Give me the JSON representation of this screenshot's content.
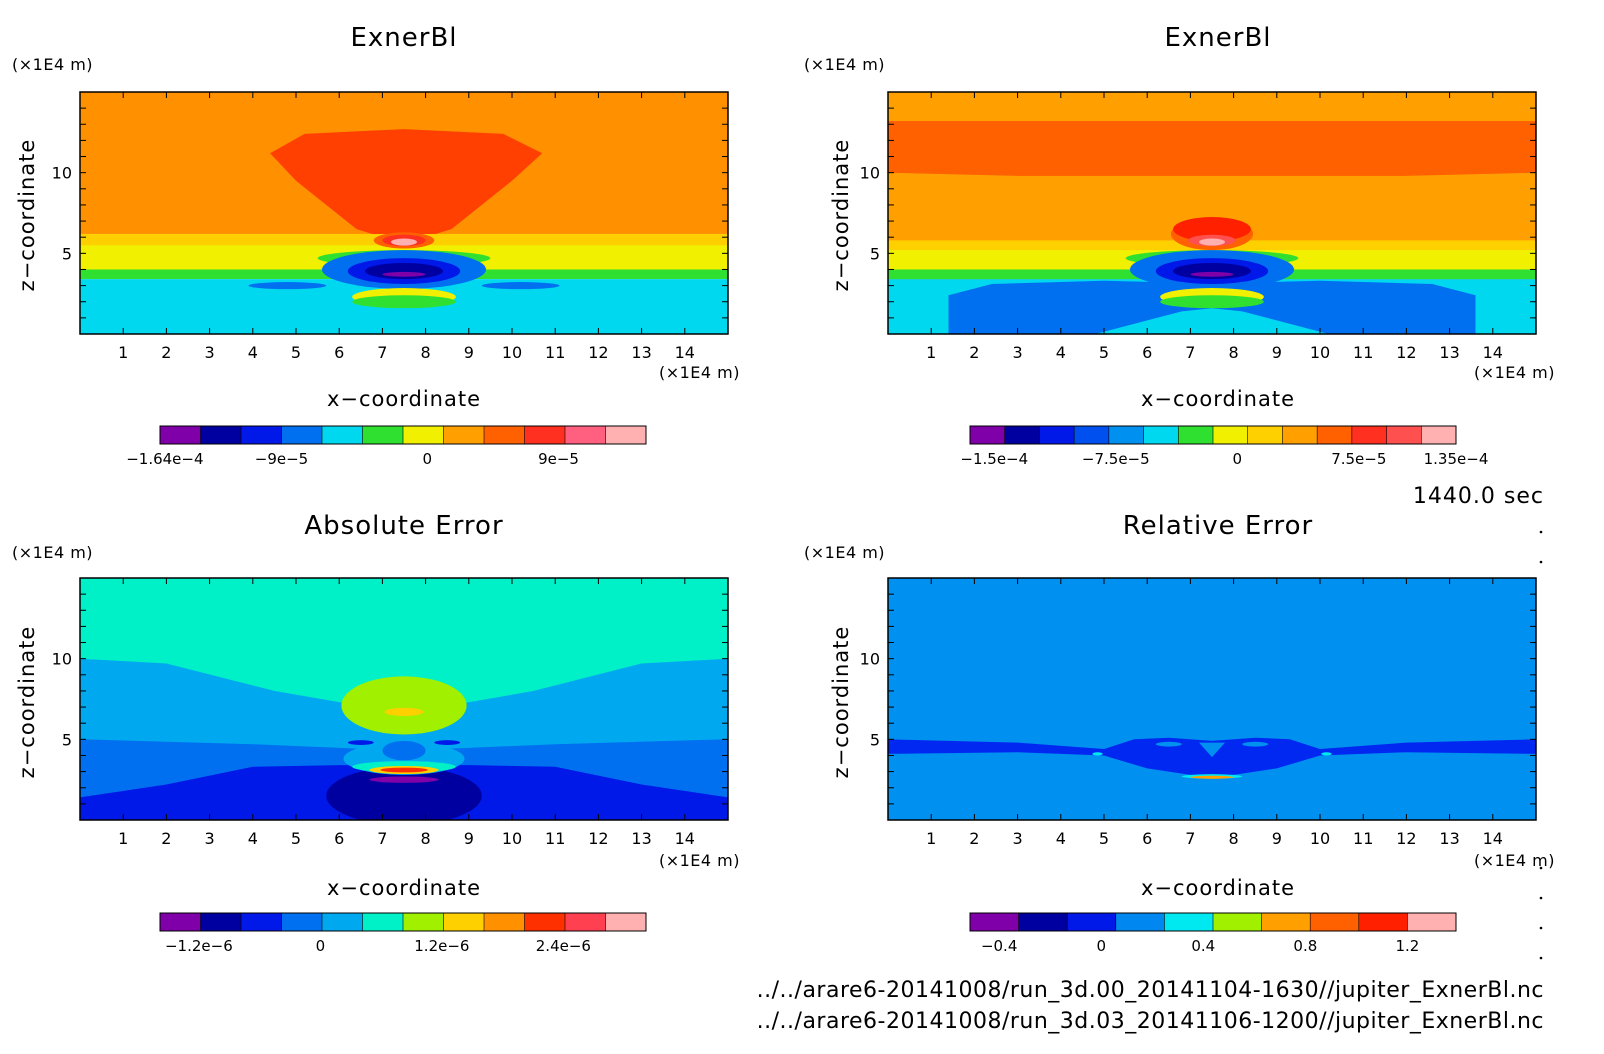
{
  "figure": {
    "time_label": "1440.0 sec",
    "file_paths": [
      "../../arare6-20141008/run_3d.00_20141104-1630//jupiter_ExnerBl.nc",
      "../../arare6-20141008/run_3d.03_20141106-1200//jupiter_ExnerBl.nc"
    ]
  },
  "chart_data": [
    {
      "type": "heatmap",
      "title": "ExnerBl",
      "xlabel": "x−coordinate",
      "ylabel": "z−coordinate",
      "x_unit": "(×1E4 m)",
      "y_unit": "(×1E4 m)",
      "xlim": [
        0,
        15
      ],
      "ylim": [
        0,
        15
      ],
      "x_ticks": [
        "1",
        "2",
        "3",
        "4",
        "5",
        "6",
        "7",
        "8",
        "9",
        "10",
        "11",
        "12",
        "13",
        "14"
      ],
      "y_ticks": [
        "5",
        "10"
      ],
      "colorbar": {
        "colors": [
          "#7f00a8",
          "#0000a0",
          "#0018e8",
          "#0070f0",
          "#00d8f0",
          "#30e030",
          "#f0f000",
          "#ffa000",
          "#ff6000",
          "#ff3020",
          "#ff6080",
          "#ffb0b0"
        ],
        "tick_labels": [
          "−1.64e−4",
          "−9e−5",
          "0",
          "9e−5"
        ],
        "tick_fractions": [
          0.01,
          0.25,
          0.55,
          0.82
        ]
      },
      "field": [
        {
          "kind": "rect",
          "color": "#ff9000",
          "x0": 0,
          "x1": 15,
          "y0": 6.2,
          "y1": 15
        },
        {
          "kind": "poly",
          "color": "#ff4000",
          "points": [
            [
              4.4,
              11.2
            ],
            [
              5.2,
              12.4
            ],
            [
              7.5,
              12.7
            ],
            [
              9.8,
              12.4
            ],
            [
              10.7,
              11.2
            ],
            [
              10,
              9.5
            ],
            [
              8.6,
              6.5
            ],
            [
              7.5,
              5.6
            ],
            [
              6.4,
              6.5
            ],
            [
              5,
              9.5
            ]
          ]
        },
        {
          "kind": "rect",
          "color": "#ffd000",
          "x0": 0,
          "x1": 15,
          "y0": 4.8,
          "y1": 6.2
        },
        {
          "kind": "rect",
          "color": "#f0f000",
          "x0": 0,
          "x1": 15,
          "y0": 3.9,
          "y1": 5.5
        },
        {
          "kind": "rect",
          "color": "#30e030",
          "x0": 0,
          "x1": 15,
          "y0": 3.4,
          "y1": 4.0
        },
        {
          "kind": "rect",
          "color": "#00d8f0",
          "x0": 0,
          "x1": 15,
          "y0": 0,
          "y1": 3.4
        },
        {
          "kind": "ellipse",
          "color": "#30e030",
          "cx": 7.5,
          "cy": 4.7,
          "rx": 2.0,
          "ry": 0.5
        },
        {
          "kind": "ellipse",
          "color": "#0070f0",
          "cx": 7.5,
          "cy": 4.0,
          "rx": 1.9,
          "ry": 1.2
        },
        {
          "kind": "ellipse",
          "color": "#0018e8",
          "cx": 7.5,
          "cy": 3.9,
          "rx": 1.3,
          "ry": 0.8
        },
        {
          "kind": "ellipse",
          "color": "#0000a0",
          "cx": 7.5,
          "cy": 3.9,
          "rx": 0.9,
          "ry": 0.5
        },
        {
          "kind": "ellipse",
          "color": "#7f00a8",
          "cx": 7.5,
          "cy": 3.7,
          "rx": 0.5,
          "ry": 0.15
        },
        {
          "kind": "ellipse",
          "color": "#0070f0",
          "cx": 4.8,
          "cy": 3.0,
          "rx": 0.9,
          "ry": 0.22
        },
        {
          "kind": "ellipse",
          "color": "#0070f0",
          "cx": 10.2,
          "cy": 3.0,
          "rx": 0.9,
          "ry": 0.22
        },
        {
          "kind": "ellipse",
          "color": "#f0f000",
          "cx": 7.5,
          "cy": 2.3,
          "rx": 1.2,
          "ry": 0.55
        },
        {
          "kind": "ellipse",
          "color": "#30e030",
          "cx": 7.5,
          "cy": 2.0,
          "rx": 1.2,
          "ry": 0.4
        },
        {
          "kind": "ellipse",
          "color": "#ff6000",
          "cx": 7.5,
          "cy": 5.8,
          "rx": 0.7,
          "ry": 0.5
        },
        {
          "kind": "ellipse",
          "color": "#ff3020",
          "cx": 7.5,
          "cy": 5.8,
          "rx": 0.5,
          "ry": 0.35
        },
        {
          "kind": "ellipse",
          "color": "#ffb0b0",
          "cx": 7.5,
          "cy": 5.7,
          "rx": 0.3,
          "ry": 0.22
        }
      ]
    },
    {
      "type": "heatmap",
      "title": "ExnerBl",
      "xlabel": "x−coordinate",
      "ylabel": "z−coordinate",
      "x_unit": "(×1E4 m)",
      "y_unit": "(×1E4 m)",
      "xlim": [
        0,
        15
      ],
      "ylim": [
        0,
        15
      ],
      "x_ticks": [
        "1",
        "2",
        "3",
        "4",
        "5",
        "6",
        "7",
        "8",
        "9",
        "10",
        "11",
        "12",
        "13",
        "14"
      ],
      "y_ticks": [
        "5",
        "10"
      ],
      "colorbar": {
        "colors": [
          "#7f00a8",
          "#0000a0",
          "#0018e8",
          "#0050f0",
          "#0090f0",
          "#00d8f0",
          "#30e030",
          "#f0f000",
          "#ffd000",
          "#ffa000",
          "#ff6000",
          "#ff3020",
          "#ff5050",
          "#ffb0b0"
        ],
        "tick_labels": [
          "−1.5e−4",
          "−7.5e−5",
          "0",
          "7.5e−5",
          "1.35e−4"
        ],
        "tick_fractions": [
          0.05,
          0.3,
          0.55,
          0.8,
          1.0
        ]
      },
      "field": [
        {
          "kind": "rect",
          "color": "#ffa000",
          "x0": 0,
          "x1": 15,
          "y0": 0,
          "y1": 15
        },
        {
          "kind": "rect",
          "color": "#ff6000",
          "x0": 0,
          "x1": 15,
          "y0": 9.8,
          "y1": 13.2
        },
        {
          "kind": "poly",
          "color": "#ffa000",
          "points": [
            [
              0,
              10
            ],
            [
              3,
              9.8
            ],
            [
              5.5,
              8.2
            ],
            [
              7.5,
              6.3
            ],
            [
              9.5,
              8.2
            ],
            [
              12,
              9.8
            ],
            [
              15,
              10
            ],
            [
              15,
              5.5
            ],
            [
              0,
              5.5
            ]
          ]
        },
        {
          "kind": "rect",
          "color": "#ffd000",
          "x0": 0,
          "x1": 15,
          "y0": 4.8,
          "y1": 5.8
        },
        {
          "kind": "rect",
          "color": "#f0f000",
          "x0": 0,
          "x1": 15,
          "y0": 3.9,
          "y1": 5.2
        },
        {
          "kind": "rect",
          "color": "#30e030",
          "x0": 0,
          "x1": 15,
          "y0": 3.4,
          "y1": 4.0
        },
        {
          "kind": "rect",
          "color": "#00d8f0",
          "x0": 0,
          "x1": 15,
          "y0": 0,
          "y1": 3.4
        },
        {
          "kind": "poly",
          "color": "#0070f0",
          "points": [
            [
              1.4,
              0
            ],
            [
              1.4,
              2.4
            ],
            [
              2.4,
              3.1
            ],
            [
              5,
              3.3
            ],
            [
              6.5,
              3.2
            ],
            [
              7.5,
              3.0
            ],
            [
              8.5,
              3.2
            ],
            [
              10,
              3.3
            ],
            [
              12.6,
              3.1
            ],
            [
              13.6,
              2.4
            ],
            [
              13.6,
              0
            ]
          ]
        },
        {
          "kind": "poly",
          "color": "#00d8f0",
          "points": [
            [
              4.8,
              0
            ],
            [
              6.8,
              1.4
            ],
            [
              7.5,
              1.6
            ],
            [
              8.2,
              1.4
            ],
            [
              10.2,
              0
            ]
          ]
        },
        {
          "kind": "ellipse",
          "color": "#30e030",
          "cx": 7.5,
          "cy": 4.7,
          "rx": 2.0,
          "ry": 0.5
        },
        {
          "kind": "ellipse",
          "color": "#0070f0",
          "cx": 7.5,
          "cy": 4.0,
          "rx": 1.9,
          "ry": 1.2
        },
        {
          "kind": "ellipse",
          "color": "#0018e8",
          "cx": 7.5,
          "cy": 3.9,
          "rx": 1.3,
          "ry": 0.8
        },
        {
          "kind": "ellipse",
          "color": "#0000a0",
          "cx": 7.5,
          "cy": 3.9,
          "rx": 0.9,
          "ry": 0.5
        },
        {
          "kind": "ellipse",
          "color": "#7f00a8",
          "cx": 7.5,
          "cy": 3.7,
          "rx": 0.5,
          "ry": 0.15
        },
        {
          "kind": "ellipse",
          "color": "#f0f000",
          "cx": 7.5,
          "cy": 2.3,
          "rx": 1.2,
          "ry": 0.55
        },
        {
          "kind": "ellipse",
          "color": "#30e030",
          "cx": 7.5,
          "cy": 2.0,
          "rx": 1.2,
          "ry": 0.4
        },
        {
          "kind": "ellipse",
          "color": "#ff6000",
          "cx": 7.5,
          "cy": 6.2,
          "rx": 0.95,
          "ry": 1.0
        },
        {
          "kind": "ellipse",
          "color": "#ff2000",
          "cx": 7.5,
          "cy": 6.5,
          "rx": 0.9,
          "ry": 0.75
        },
        {
          "kind": "ellipse",
          "color": "#ff5050",
          "cx": 7.5,
          "cy": 5.8,
          "rx": 0.55,
          "ry": 0.35
        },
        {
          "kind": "ellipse",
          "color": "#ffb0b0",
          "cx": 7.5,
          "cy": 5.7,
          "rx": 0.3,
          "ry": 0.22
        }
      ]
    },
    {
      "type": "heatmap",
      "title": "Absolute Error",
      "xlabel": "x−coordinate",
      "ylabel": "z−coordinate",
      "x_unit": "(×1E4 m)",
      "y_unit": "(×1E4 m)",
      "xlim": [
        0,
        15
      ],
      "ylim": [
        0,
        15
      ],
      "x_ticks": [
        "1",
        "2",
        "3",
        "4",
        "5",
        "6",
        "7",
        "8",
        "9",
        "10",
        "11",
        "12",
        "13",
        "14"
      ],
      "y_ticks": [
        "5",
        "10"
      ],
      "colorbar": {
        "colors": [
          "#7f00a8",
          "#0000a0",
          "#0018e8",
          "#0070f0",
          "#00a8f0",
          "#00f0c8",
          "#a0f000",
          "#ffd000",
          "#ff9000",
          "#ff3000",
          "#ff4050",
          "#ffb0b0"
        ],
        "tick_labels": [
          "−1.2e−6",
          "0",
          "1.2e−6",
          "2.4e−6"
        ],
        "tick_fractions": [
          0.08,
          0.33,
          0.58,
          0.83
        ]
      },
      "field": [
        {
          "kind": "rect",
          "color": "#00f0c8",
          "x0": 0,
          "x1": 15,
          "y0": 0,
          "y1": 15
        },
        {
          "kind": "poly",
          "color": "#00a8f0",
          "points": [
            [
              0,
              10
            ],
            [
              2,
              9.7
            ],
            [
              4.5,
              8.0
            ],
            [
              7.5,
              6.6
            ],
            [
              10.5,
              8.0
            ],
            [
              13,
              9.7
            ],
            [
              15,
              10
            ],
            [
              15,
              0
            ],
            [
              0,
              0
            ]
          ]
        },
        {
          "kind": "poly",
          "color": "#0070f0",
          "points": [
            [
              0,
              5
            ],
            [
              4,
              4.7
            ],
            [
              7.5,
              4.3
            ],
            [
              11,
              4.7
            ],
            [
              15,
              5
            ],
            [
              15,
              0
            ],
            [
              0,
              0
            ]
          ]
        },
        {
          "kind": "poly",
          "color": "#0018e8",
          "points": [
            [
              0,
              1.4
            ],
            [
              2,
              2.2
            ],
            [
              4,
              3.3
            ],
            [
              6,
              3.4
            ],
            [
              7.5,
              3.4
            ],
            [
              9,
              3.4
            ],
            [
              11,
              3.3
            ],
            [
              13,
              2.2
            ],
            [
              15,
              1.4
            ],
            [
              15,
              0
            ],
            [
              0,
              0
            ]
          ]
        },
        {
          "kind": "ellipse",
          "color": "#0000a0",
          "cx": 7.5,
          "cy": 1.5,
          "rx": 1.8,
          "ry": 1.8
        },
        {
          "kind": "ellipse",
          "color": "#00a8f0",
          "cx": 7.5,
          "cy": 3.8,
          "rx": 1.4,
          "ry": 1.0
        },
        {
          "kind": "ellipse",
          "color": "#0070f0",
          "cx": 7.5,
          "cy": 4.3,
          "rx": 0.5,
          "ry": 0.6
        },
        {
          "kind": "ellipse",
          "color": "#0018e8",
          "cx": 6.5,
          "cy": 4.8,
          "rx": 0.3,
          "ry": 0.15
        },
        {
          "kind": "ellipse",
          "color": "#0018e8",
          "cx": 8.5,
          "cy": 4.8,
          "rx": 0.3,
          "ry": 0.15
        },
        {
          "kind": "ellipse",
          "color": "#00f0c8",
          "cx": 7.5,
          "cy": 3.3,
          "rx": 1.2,
          "ry": 0.35
        },
        {
          "kind": "ellipse",
          "color": "#ffd000",
          "cx": 7.5,
          "cy": 3.1,
          "rx": 0.8,
          "ry": 0.25
        },
        {
          "kind": "ellipse",
          "color": "#ff3000",
          "cx": 7.5,
          "cy": 3.1,
          "rx": 0.55,
          "ry": 0.15
        },
        {
          "kind": "ellipse",
          "color": "#7f00a8",
          "cx": 7.5,
          "cy": 2.5,
          "rx": 0.8,
          "ry": 0.2
        },
        {
          "kind": "ellipse",
          "color": "#a0f000",
          "cx": 7.5,
          "cy": 7.1,
          "rx": 1.45,
          "ry": 1.8
        },
        {
          "kind": "ellipse",
          "color": "#ffd000",
          "cx": 7.5,
          "cy": 6.7,
          "rx": 0.45,
          "ry": 0.25
        }
      ]
    },
    {
      "type": "heatmap",
      "title": "Relative Error",
      "xlabel": "x−coordinate",
      "ylabel": "z−coordinate",
      "x_unit": "(×1E4 m)",
      "y_unit": "(×1E4 m)",
      "xlim": [
        0,
        15
      ],
      "ylim": [
        0,
        15
      ],
      "x_ticks": [
        "1",
        "2",
        "3",
        "4",
        "5",
        "6",
        "7",
        "8",
        "9",
        "10",
        "11",
        "12",
        "13",
        "14"
      ],
      "y_ticks": [
        "5",
        "10"
      ],
      "colorbar": {
        "colors": [
          "#7f00a8",
          "#0000a0",
          "#0018e8",
          "#0088f0",
          "#00e8f0",
          "#a0f000",
          "#ffa000",
          "#ff6000",
          "#ff2000",
          "#ffb0b0"
        ],
        "tick_labels": [
          "−0.4",
          "0",
          "0.4",
          "0.8",
          "1.2"
        ],
        "tick_fractions": [
          0.06,
          0.27,
          0.48,
          0.69,
          0.9
        ]
      },
      "field": [
        {
          "kind": "rect",
          "color": "#0090f0",
          "x0": 0,
          "x1": 15,
          "y0": 0,
          "y1": 15
        },
        {
          "kind": "poly",
          "color": "#0028f0",
          "points": [
            [
              0,
              5
            ],
            [
              3,
              4.8
            ],
            [
              5,
              4.4
            ],
            [
              5.7,
              5.0
            ],
            [
              6.5,
              5.1
            ],
            [
              7.5,
              4.9
            ],
            [
              8.5,
              5.1
            ],
            [
              9.3,
              5.0
            ],
            [
              10,
              4.4
            ],
            [
              12,
              4.8
            ],
            [
              15,
              5
            ],
            [
              15,
              4.1
            ],
            [
              12,
              4.2
            ],
            [
              10,
              4.0
            ],
            [
              9.0,
              3.2
            ],
            [
              7.5,
              2.6
            ],
            [
              6.0,
              3.2
            ],
            [
              5,
              4.0
            ],
            [
              3,
              4.2
            ],
            [
              0,
              4.1
            ]
          ]
        },
        {
          "kind": "ellipse",
          "color": "#0090f0",
          "cx": 6.5,
          "cy": 4.7,
          "rx": 0.3,
          "ry": 0.15
        },
        {
          "kind": "ellipse",
          "color": "#0090f0",
          "cx": 8.5,
          "cy": 4.7,
          "rx": 0.3,
          "ry": 0.15
        },
        {
          "kind": "poly",
          "color": "#0090f0",
          "points": [
            [
              7.2,
              4.8
            ],
            [
              7.8,
              4.8
            ],
            [
              7.5,
              3.9
            ]
          ]
        },
        {
          "kind": "ellipse",
          "color": "#00e8f0",
          "cx": 4.85,
          "cy": 4.1,
          "rx": 0.12,
          "ry": 0.1
        },
        {
          "kind": "ellipse",
          "color": "#00e8f0",
          "cx": 10.15,
          "cy": 4.1,
          "rx": 0.12,
          "ry": 0.1
        },
        {
          "kind": "ellipse",
          "color": "#00e8f0",
          "cx": 7.5,
          "cy": 2.7,
          "rx": 0.7,
          "ry": 0.14
        },
        {
          "kind": "ellipse",
          "color": "#ffa000",
          "cx": 7.5,
          "cy": 2.65,
          "rx": 0.5,
          "ry": 0.09
        }
      ]
    }
  ]
}
